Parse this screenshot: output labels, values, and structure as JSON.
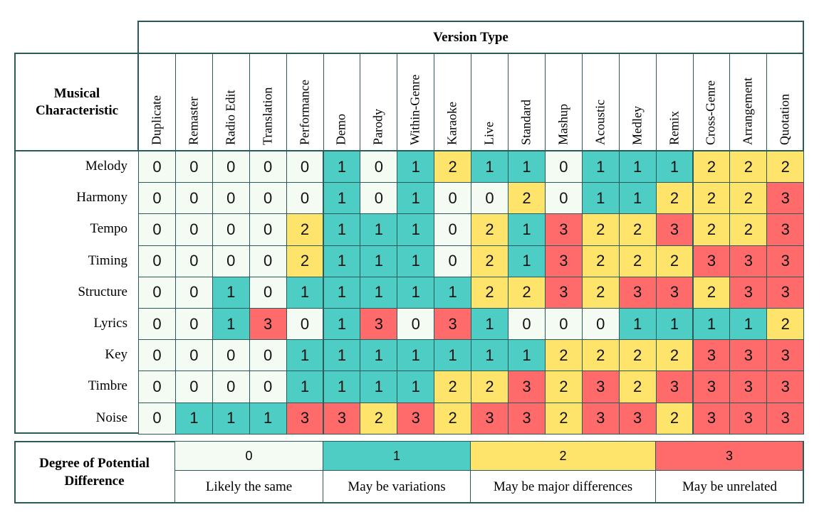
{
  "title": "Version Type",
  "row_header": "Musical Characteristic",
  "columns": [
    "Duplicate",
    "Remaster",
    "Radio Edit",
    "Translation",
    "Performance",
    "Demo",
    "Parody",
    "Within-Genre",
    "Karaoke",
    "Live",
    "Standard",
    "Mashup",
    "Acoustic",
    "Medley",
    "Remix",
    "Cross-Genre",
    "Arrangement",
    "Quotation"
  ],
  "rows": [
    "Melody",
    "Harmony",
    "Tempo",
    "Timing",
    "Structure",
    "Lyrics",
    "Key",
    "Timbre",
    "Noise"
  ],
  "chart_data": {
    "type": "heatmap",
    "title": "Version Type",
    "xlabel": "Version Type",
    "ylabel": "Musical Characteristic",
    "x": [
      "Duplicate",
      "Remaster",
      "Radio Edit",
      "Translation",
      "Performance",
      "Demo",
      "Parody",
      "Within-Genre",
      "Karaoke",
      "Live",
      "Standard",
      "Mashup",
      "Acoustic",
      "Medley",
      "Remix",
      "Cross-Genre",
      "Arrangement",
      "Quotation"
    ],
    "y": [
      "Melody",
      "Harmony",
      "Tempo",
      "Timing",
      "Structure",
      "Lyrics",
      "Key",
      "Timbre",
      "Noise"
    ],
    "values": [
      [
        0,
        0,
        0,
        0,
        0,
        1,
        0,
        1,
        2,
        1,
        1,
        0,
        1,
        1,
        1,
        2,
        2,
        2
      ],
      [
        0,
        0,
        0,
        0,
        0,
        1,
        0,
        1,
        0,
        0,
        2,
        0,
        1,
        1,
        2,
        2,
        2,
        3
      ],
      [
        0,
        0,
        0,
        0,
        2,
        1,
        1,
        1,
        0,
        2,
        1,
        3,
        2,
        2,
        3,
        2,
        2,
        3
      ],
      [
        0,
        0,
        0,
        0,
        2,
        1,
        1,
        1,
        0,
        2,
        1,
        3,
        2,
        2,
        2,
        3,
        3,
        3
      ],
      [
        0,
        0,
        1,
        0,
        1,
        1,
        1,
        1,
        1,
        2,
        2,
        3,
        2,
        3,
        3,
        2,
        3,
        3
      ],
      [
        0,
        0,
        1,
        3,
        0,
        1,
        3,
        0,
        3,
        1,
        0,
        0,
        0,
        1,
        1,
        1,
        1,
        2
      ],
      [
        0,
        0,
        0,
        0,
        1,
        1,
        1,
        1,
        1,
        1,
        1,
        2,
        2,
        2,
        2,
        3,
        3,
        3
      ],
      [
        0,
        0,
        0,
        0,
        1,
        1,
        1,
        1,
        2,
        2,
        3,
        2,
        3,
        2,
        3,
        3,
        3,
        3
      ],
      [
        0,
        1,
        1,
        1,
        3,
        3,
        2,
        3,
        2,
        3,
        3,
        2,
        3,
        3,
        2,
        3,
        3,
        3
      ]
    ],
    "scale": {
      "0": "#f4fbf3",
      "1": "#4ecdc4",
      "2": "#ffe46b",
      "3": "#ff6b6b"
    }
  },
  "legend": {
    "title": "Degree of Potential Difference",
    "levels": [
      {
        "value": "0",
        "label": "Likely the same",
        "color": "#f4fbf3"
      },
      {
        "value": "1",
        "label": "May be variations",
        "color": "#4ecdc4"
      },
      {
        "value": "2",
        "label": "May be major differences",
        "color": "#ffe46b"
      },
      {
        "value": "3",
        "label": "May be unrelated",
        "color": "#ff6b6b"
      }
    ]
  },
  "colors": {
    "border": "#2a5a5a"
  }
}
